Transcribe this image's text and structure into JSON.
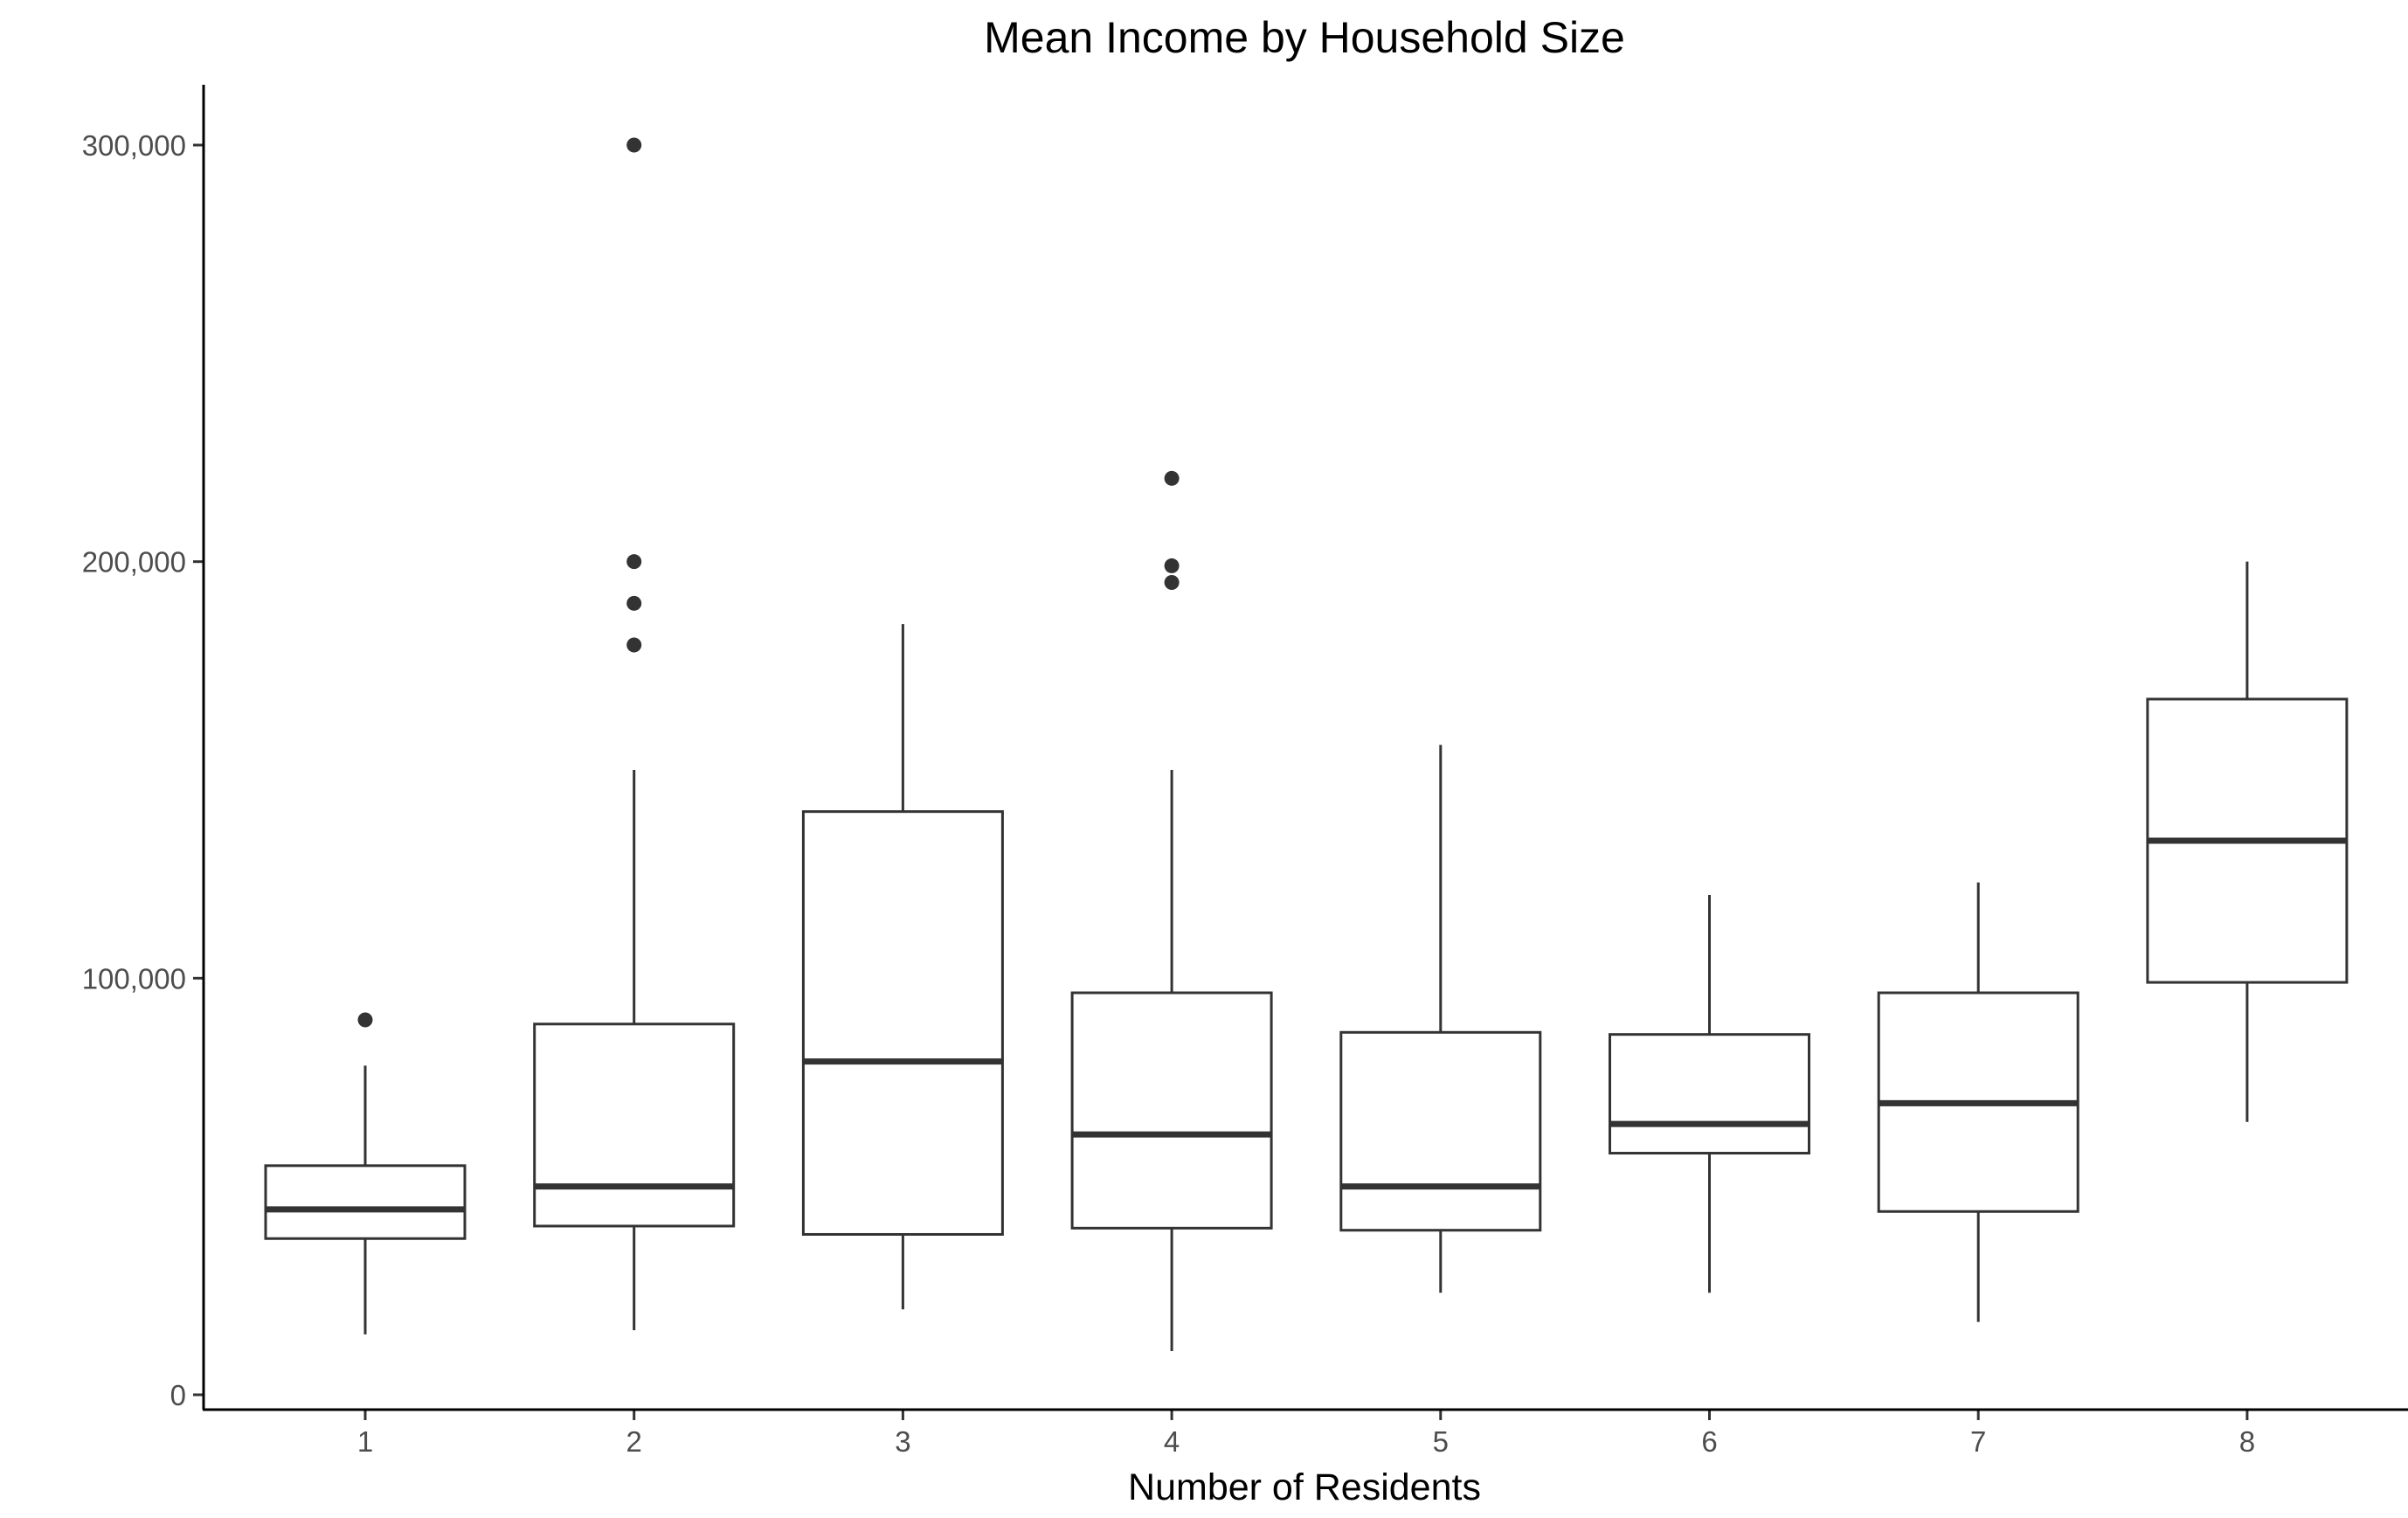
{
  "chart_data": {
    "type": "box",
    "title": "Mean Income by Household Size",
    "xlabel": "Number of Residents",
    "ylabel": "",
    "ylim": [
      -4000,
      315000
    ],
    "grid": false,
    "yticks": [
      {
        "value": 0,
        "label": "0"
      },
      {
        "value": 100000,
        "label": "100,000"
      },
      {
        "value": 200000,
        "label": "200,000"
      },
      {
        "value": 300000,
        "label": "300,000"
      }
    ],
    "categories": [
      "1",
      "2",
      "3",
      "4",
      "5",
      "6",
      "7",
      "8"
    ],
    "boxes": [
      {
        "category": "1",
        "min": 14500,
        "q1": 37500,
        "median": 44500,
        "q3": 55000,
        "max": 79000,
        "outliers": [
          90000
        ]
      },
      {
        "category": "2",
        "min": 15500,
        "q1": 40500,
        "median": 50000,
        "q3": 89000,
        "max": 150000,
        "outliers": [
          180000,
          190000,
          200000,
          300000
        ]
      },
      {
        "category": "3",
        "min": 20500,
        "q1": 38500,
        "median": 80000,
        "q3": 140000,
        "max": 185000,
        "outliers": []
      },
      {
        "category": "4",
        "min": 10500,
        "q1": 40000,
        "median": 62500,
        "q3": 96500,
        "max": 150000,
        "outliers": [
          195000,
          199000,
          220000
        ]
      },
      {
        "category": "5",
        "min": 24500,
        "q1": 39500,
        "median": 50000,
        "q3": 87000,
        "max": 156000,
        "outliers": []
      },
      {
        "category": "6",
        "min": 24500,
        "q1": 58000,
        "median": 65000,
        "q3": 86500,
        "max": 120000,
        "outliers": []
      },
      {
        "category": "7",
        "min": 17500,
        "q1": 44000,
        "median": 70000,
        "q3": 96500,
        "max": 123000,
        "outliers": []
      },
      {
        "category": "8",
        "min": 65500,
        "q1": 99000,
        "median": 133000,
        "q3": 167000,
        "max": 200000,
        "outliers": []
      }
    ],
    "colors": {
      "box_stroke": "#333333",
      "point_fill": "#333333",
      "axis": "#000000",
      "tick_text": "#4d4d4d"
    }
  }
}
